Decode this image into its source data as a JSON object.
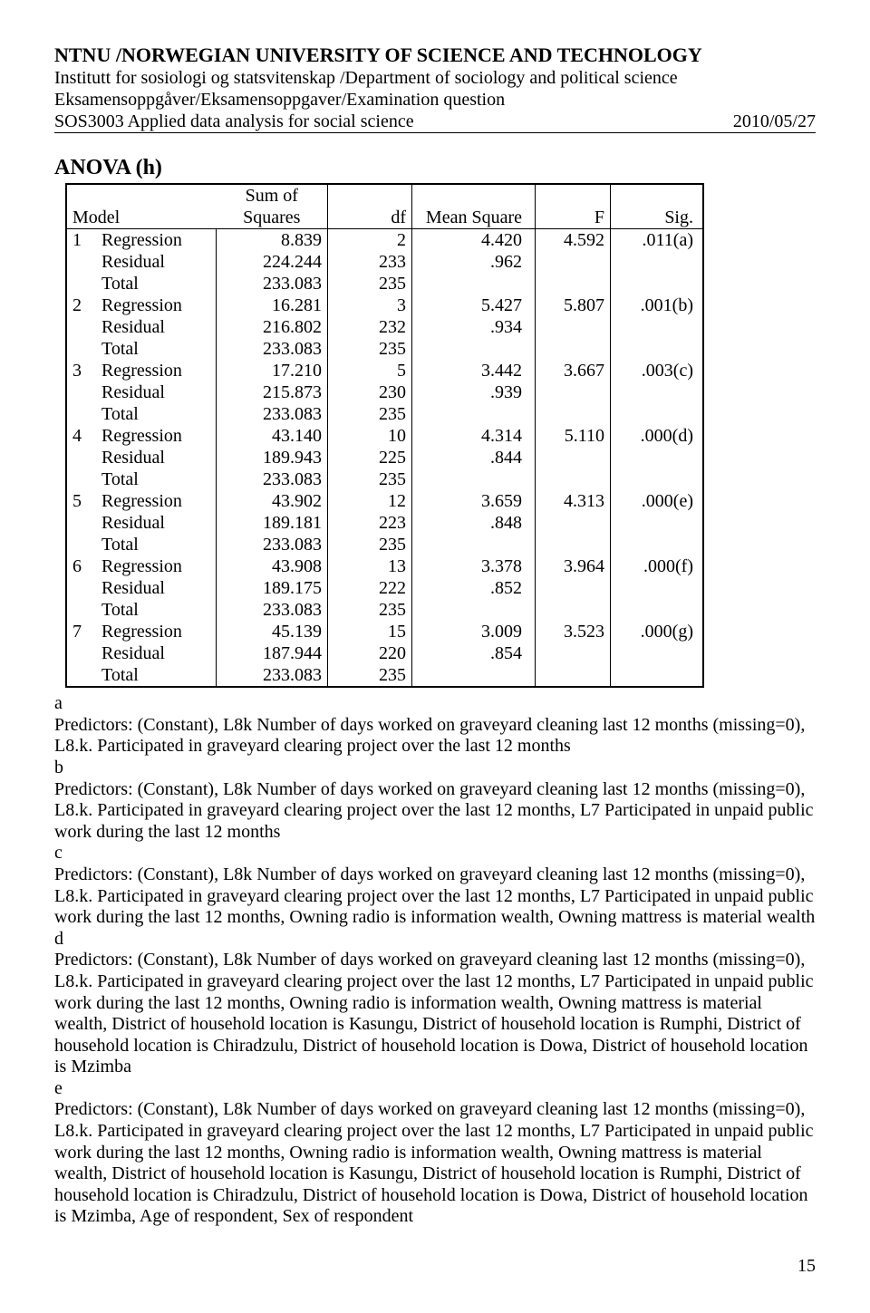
{
  "header": {
    "uni": "NTNU /NORWEGIAN UNIVERSITY OF SCIENCE AND TECHNOLOGY",
    "dept": "Institutt for sosiologi og statsvitenskap /Department of sociology and political science",
    "exam": "Eksamensoppgåver/Eksamensoppgaver/Examination question",
    "course": "SOS3003 Applied data analysis for social science",
    "date": "2010/05/27"
  },
  "section_title": "ANOVA (h)",
  "columns": {
    "model": "Model",
    "ss1": "Sum of",
    "ss2": "Squares",
    "df": "df",
    "ms": "Mean Square",
    "f": "F",
    "sig": "Sig."
  },
  "models": [
    {
      "n": "1",
      "rows": [
        {
          "lbl": "Regression",
          "ss": "8.839",
          "df": "2",
          "ms": "4.420",
          "f": "4.592",
          "sig": ".011(a)"
        },
        {
          "lbl": "Residual",
          "ss": "224.244",
          "df": "233",
          "ms": ".962"
        },
        {
          "lbl": "Total",
          "ss": "233.083",
          "df": "235"
        }
      ]
    },
    {
      "n": "2",
      "rows": [
        {
          "lbl": "Regression",
          "ss": "16.281",
          "df": "3",
          "ms": "5.427",
          "f": "5.807",
          "sig": ".001(b)"
        },
        {
          "lbl": "Residual",
          "ss": "216.802",
          "df": "232",
          "ms": ".934"
        },
        {
          "lbl": "Total",
          "ss": "233.083",
          "df": "235"
        }
      ]
    },
    {
      "n": "3",
      "rows": [
        {
          "lbl": "Regression",
          "ss": "17.210",
          "df": "5",
          "ms": "3.442",
          "f": "3.667",
          "sig": ".003(c)"
        },
        {
          "lbl": "Residual",
          "ss": "215.873",
          "df": "230",
          "ms": ".939"
        },
        {
          "lbl": "Total",
          "ss": "233.083",
          "df": "235"
        }
      ]
    },
    {
      "n": "4",
      "rows": [
        {
          "lbl": "Regression",
          "ss": "43.140",
          "df": "10",
          "ms": "4.314",
          "f": "5.110",
          "sig": ".000(d)"
        },
        {
          "lbl": "Residual",
          "ss": "189.943",
          "df": "225",
          "ms": ".844"
        },
        {
          "lbl": "Total",
          "ss": "233.083",
          "df": "235"
        }
      ]
    },
    {
      "n": "5",
      "rows": [
        {
          "lbl": "Regression",
          "ss": "43.902",
          "df": "12",
          "ms": "3.659",
          "f": "4.313",
          "sig": ".000(e)"
        },
        {
          "lbl": "Residual",
          "ss": "189.181",
          "df": "223",
          "ms": ".848"
        },
        {
          "lbl": "Total",
          "ss": "233.083",
          "df": "235"
        }
      ]
    },
    {
      "n": "6",
      "rows": [
        {
          "lbl": "Regression",
          "ss": "43.908",
          "df": "13",
          "ms": "3.378",
          "f": "3.964",
          "sig": ".000(f)"
        },
        {
          "lbl": "Residual",
          "ss": "189.175",
          "df": "222",
          "ms": ".852"
        },
        {
          "lbl": "Total",
          "ss": "233.083",
          "df": "235"
        }
      ]
    },
    {
      "n": "7",
      "rows": [
        {
          "lbl": "Regression",
          "ss": "45.139",
          "df": "15",
          "ms": "3.009",
          "f": "3.523",
          "sig": ".000(g)"
        },
        {
          "lbl": "Residual",
          "ss": "187.944",
          "df": "220",
          "ms": ".854"
        },
        {
          "lbl": "Total",
          "ss": "233.083",
          "df": "235"
        }
      ]
    }
  ],
  "notes": [
    {
      "k": "a",
      "t": "Predictors: (Constant), L8k Number of days worked on graveyard cleaning last 12 months (missing=0), L8.k. Participated in graveyard clearing project over the last 12 months"
    },
    {
      "k": "b",
      "t": "Predictors: (Constant), L8k Number of days worked on graveyard cleaning last 12 months (missing=0), L8.k. Participated in graveyard clearing project over the last 12 months, L7 Participated in unpaid public work during the last 12 months"
    },
    {
      "k": "c",
      "t": "Predictors: (Constant), L8k Number of days worked on graveyard cleaning last 12 months (missing=0), L8.k. Participated in graveyard clearing project over the last 12 months, L7 Participated in unpaid public work during the last 12 months, Owning radio is information wealth, Owning mattress is material wealth"
    },
    {
      "k": "d",
      "t": "Predictors: (Constant), L8k Number of days worked on graveyard cleaning last 12 months (missing=0), L8.k. Participated in graveyard clearing project over the last 12 months, L7 Participated in unpaid public work during the last 12 months, Owning radio is information wealth, Owning mattress is material wealth, District of household location is Kasungu, District of household location is Rumphi, District of household location is Chiradzulu, District of household location is Dowa, District of household location is Mzimba"
    },
    {
      "k": "e",
      "t": "Predictors: (Constant), L8k Number of days worked on graveyard cleaning last 12 months (missing=0), L8.k. Participated in graveyard clearing project over the last 12 months, L7 Participated in unpaid public work during the last 12 months, Owning radio is information wealth, Owning mattress is material wealth, District of household location is Kasungu, District of household location is Rumphi, District of household location is Chiradzulu, District of household location is Dowa, District of household location is Mzimba, Age of respondent, Sex of respondent"
    }
  ],
  "page_number": "15"
}
